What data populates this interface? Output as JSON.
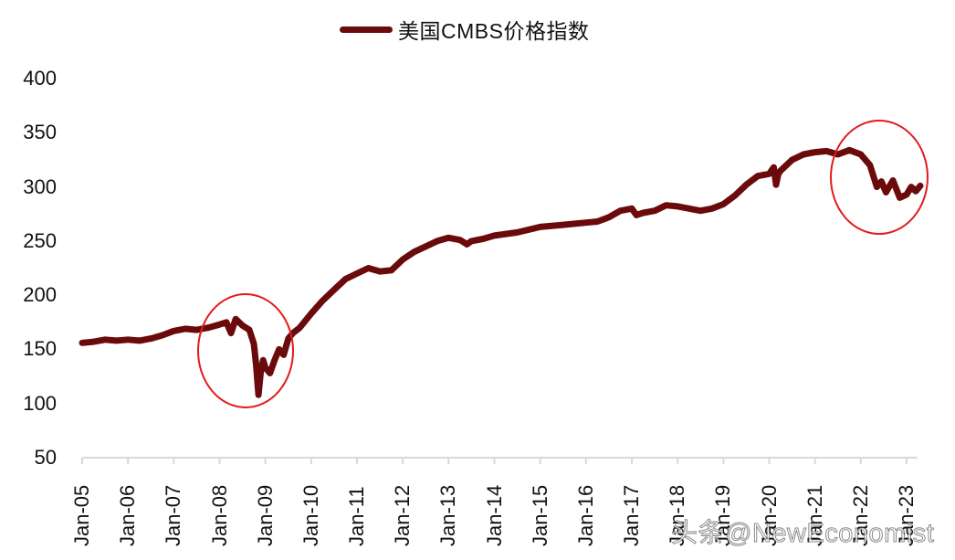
{
  "legend": {
    "label": "美国CMBS价格指数",
    "color": "#6b0a0a"
  },
  "watermark": "头条@NewEconomist",
  "colors": {
    "series": "#6b0a0a",
    "highlight_circle": "#e31a1a",
    "axis": "#d9d9d9"
  },
  "chart_data": {
    "type": "line",
    "title": "",
    "legend": [
      "美国CMBS价格指数"
    ],
    "legend_position": "top",
    "xlabel": "",
    "ylabel": "",
    "ylim": [
      50,
      400
    ],
    "yticks": [
      50,
      100,
      150,
      200,
      250,
      300,
      350,
      400
    ],
    "xticks": [
      "Jan-05",
      "Jan-06",
      "Jan-07",
      "Jan-08",
      "Jan-09",
      "Jan-10",
      "Jan-11",
      "Jan-12",
      "Jan-13",
      "Jan-14",
      "Jan-15",
      "Jan-16",
      "Jan-17",
      "Jan-18",
      "Jan-19",
      "Jan-20",
      "Jan-21",
      "Jan-22",
      "Jan-23"
    ],
    "grid": false,
    "series": [
      {
        "name": "美国CMBS价格指数",
        "x": [
          2005.0,
          2005.25,
          2005.5,
          2005.75,
          2006.0,
          2006.25,
          2006.5,
          2006.75,
          2007.0,
          2007.25,
          2007.5,
          2007.75,
          2008.0,
          2008.15,
          2008.25,
          2008.35,
          2008.5,
          2008.65,
          2008.75,
          2008.8,
          2008.85,
          2008.9,
          2008.95,
          2009.0,
          2009.1,
          2009.2,
          2009.3,
          2009.4,
          2009.5,
          2009.6,
          2009.75,
          2010.0,
          2010.25,
          2010.5,
          2010.75,
          2011.0,
          2011.25,
          2011.5,
          2011.75,
          2012.0,
          2012.25,
          2012.5,
          2012.75,
          2013.0,
          2013.25,
          2013.4,
          2013.5,
          2013.75,
          2014.0,
          2014.5,
          2015.0,
          2015.5,
          2016.0,
          2016.25,
          2016.5,
          2016.75,
          2017.0,
          2017.1,
          2017.25,
          2017.5,
          2017.75,
          2018.0,
          2018.25,
          2018.5,
          2018.75,
          2019.0,
          2019.25,
          2019.5,
          2019.75,
          2020.0,
          2020.1,
          2020.15,
          2020.2,
          2020.25,
          2020.5,
          2020.75,
          2021.0,
          2021.25,
          2021.5,
          2021.75,
          2022.0,
          2022.2,
          2022.35,
          2022.45,
          2022.55,
          2022.7,
          2022.85,
          2023.0,
          2023.1,
          2023.2,
          2023.3
        ],
        "values": [
          156,
          157,
          159,
          158,
          159,
          158,
          160,
          163,
          167,
          169,
          168,
          170,
          173,
          175,
          165,
          178,
          172,
          168,
          155,
          135,
          108,
          130,
          140,
          133,
          128,
          140,
          150,
          145,
          160,
          165,
          170,
          183,
          195,
          205,
          215,
          220,
          225,
          222,
          223,
          233,
          240,
          245,
          250,
          253,
          251,
          247,
          250,
          252,
          255,
          258,
          263,
          265,
          267,
          268,
          272,
          278,
          280,
          274,
          276,
          278,
          283,
          282,
          280,
          278,
          280,
          284,
          292,
          302,
          310,
          312,
          318,
          302,
          312,
          315,
          325,
          330,
          332,
          333,
          330,
          334,
          330,
          320,
          300,
          305,
          295,
          306,
          290,
          293,
          300,
          296,
          301
        ]
      }
    ],
    "annotations": [
      {
        "type": "ellipse",
        "color": "#e31a1a",
        "around": "2008-2009 financial crisis drop"
      },
      {
        "type": "ellipse",
        "color": "#e31a1a",
        "around": "2022-2023 decline"
      }
    ]
  }
}
